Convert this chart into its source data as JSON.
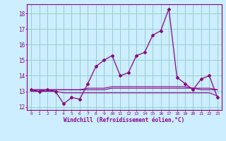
{
  "x": [
    0,
    1,
    2,
    3,
    4,
    5,
    6,
    7,
    8,
    9,
    10,
    11,
    12,
    13,
    14,
    15,
    16,
    17,
    18,
    19,
    20,
    21,
    22,
    23
  ],
  "windchill": [
    13.1,
    13.0,
    13.1,
    13.0,
    12.2,
    12.6,
    12.5,
    13.5,
    14.6,
    15.0,
    15.3,
    14.0,
    14.2,
    15.3,
    15.5,
    16.6,
    16.9,
    18.3,
    13.9,
    13.5,
    13.1,
    13.8,
    14.0,
    12.6
  ],
  "line2": [
    13.1,
    13.1,
    13.1,
    13.1,
    13.1,
    13.1,
    13.1,
    13.1,
    13.1,
    13.1,
    13.2,
    13.2,
    13.2,
    13.2,
    13.2,
    13.2,
    13.2,
    13.2,
    13.2,
    13.2,
    13.2,
    13.1,
    13.1,
    13.1
  ],
  "line3": [
    13.0,
    13.0,
    13.0,
    13.0,
    12.9,
    12.9,
    12.9,
    12.9,
    12.9,
    12.9,
    12.9,
    12.9,
    12.9,
    12.9,
    12.9,
    12.9,
    12.9,
    12.9,
    12.9,
    12.9,
    12.9,
    12.9,
    12.9,
    12.7
  ],
  "line4": [
    13.1,
    13.1,
    13.1,
    13.1,
    13.1,
    13.1,
    13.1,
    13.2,
    13.2,
    13.2,
    13.3,
    13.3,
    13.3,
    13.3,
    13.3,
    13.3,
    13.3,
    13.3,
    13.3,
    13.3,
    13.2,
    13.2,
    13.2,
    13.1
  ],
  "line_color": "#880088",
  "bg_color": "#cceeff",
  "grid_color": "#99cccc",
  "ylim": [
    11.8,
    18.6
  ],
  "yticks": [
    12,
    13,
    14,
    15,
    16,
    17,
    18
  ],
  "xlabel": "Windchill (Refroidissement éolien,°C)"
}
